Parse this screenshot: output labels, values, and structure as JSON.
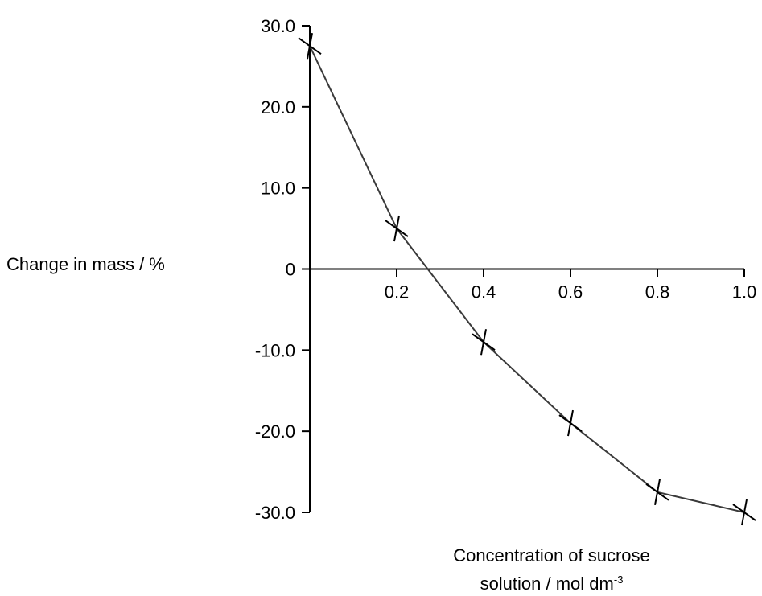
{
  "chart_data": {
    "type": "line",
    "title": "",
    "ylabel": "Change in mass / %",
    "xlabel_line1": "Concentration of sucrose",
    "xlabel_line2": "solution / mol dm",
    "xlabel_superscript": "-3",
    "x_ticks": [
      "0.2",
      "0.4",
      "0.6",
      "0.8",
      "1.0"
    ],
    "y_ticks": [
      "30.0",
      "20.0",
      "10.0",
      "0",
      "-10.0",
      "-20.0",
      "-30.0"
    ],
    "xlim": [
      0,
      1.0
    ],
    "ylim": [
      -30,
      30
    ],
    "grid": false,
    "marker": "cross",
    "line_color": "#3a3a3a",
    "series": [
      {
        "x": [
          0.0,
          0.2,
          0.4,
          0.6,
          0.8,
          1.0
        ],
        "y": [
          27.5,
          5.0,
          -9.0,
          -19.0,
          -27.5,
          -30.0
        ]
      }
    ]
  }
}
